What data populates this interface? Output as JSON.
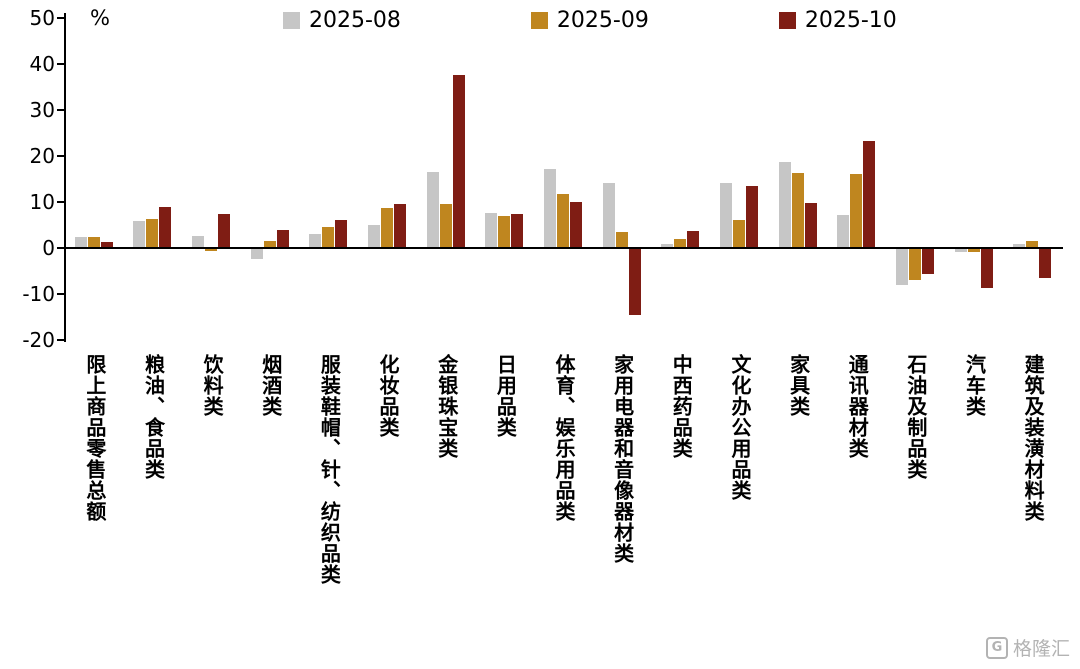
{
  "chart_data": {
    "type": "bar",
    "title": "",
    "unit_label": "%",
    "ylim": [
      -20,
      50
    ],
    "yticks": [
      50,
      40,
      30,
      20,
      10,
      0,
      -10,
      -20
    ],
    "grid": false,
    "legend_position": "top",
    "categories": [
      "限上商品零售总额",
      "粮油、食品类",
      "饮料类",
      "烟酒类",
      "服装鞋帽、针、纺织品类",
      "化妆品类",
      "金银珠宝类",
      "日用品类",
      "体育、娱乐用品类",
      "家用电器和音像器材类",
      "中西药品类",
      "文化办公用品类",
      "家具类",
      "通讯器材类",
      "石油及制品类",
      "汽车类",
      "建筑及装潢材料类"
    ],
    "series": [
      {
        "name": "2025-08",
        "color": "#c6c6c6",
        "values": [
          2.5,
          5.8,
          2.6,
          -2.3,
          3.1,
          5.1,
          16.6,
          7.6,
          17.1,
          14.2,
          0.9,
          14.2,
          18.6,
          7.2,
          -8.1,
          -0.8,
          0.9
        ]
      },
      {
        "name": "2025-09",
        "color": "#bf861f",
        "values": [
          2.5,
          6.2,
          -0.7,
          1.6,
          4.6,
          8.7,
          9.6,
          7.0,
          11.7,
          3.5,
          2.0,
          6.1,
          16.3,
          16.1,
          -7.0,
          -0.9,
          1.6
        ]
      },
      {
        "name": "2025-10",
        "color": "#7f1d14",
        "values": [
          1.3,
          9.0,
          7.3,
          4.0,
          6.1,
          9.6,
          37.6,
          7.5,
          10.1,
          -14.6,
          3.8,
          13.4,
          9.7,
          23.2,
          -5.6,
          -8.6,
          -6.6
        ]
      }
    ]
  },
  "watermark": {
    "logo_letter": "G",
    "text": "格隆汇"
  }
}
